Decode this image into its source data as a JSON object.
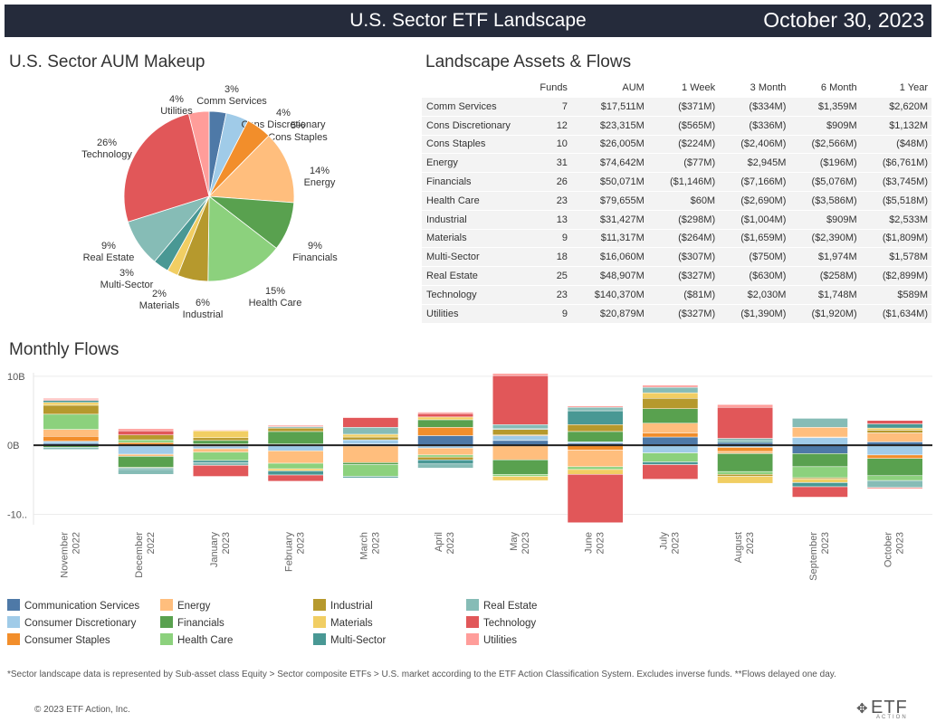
{
  "header": {
    "title": "U.S. Sector ETF Landscape",
    "date": "October 30, 2023"
  },
  "colors": {
    "Communication Services": "#4e79a7",
    "Consumer Discretionary": "#a0cbe8",
    "Consumer Staples": "#f28e2b",
    "Energy": "#ffbe7d",
    "Financials": "#59a14f",
    "Health Care": "#8cd17d",
    "Industrial": "#b6992d",
    "Materials": "#f1ce63",
    "Multi-Sector": "#499894",
    "Real Estate": "#86bcb6",
    "Technology": "#e15759",
    "Utilities": "#ff9d9a"
  },
  "pie": {
    "title": "U.S. Sector AUM Makeup",
    "slices": [
      {
        "name": "Comm Services",
        "pct": "3%",
        "value": 17511,
        "color_key": "Communication Services"
      },
      {
        "name": "Cons Discretionary",
        "pct": "4%",
        "value": 23315,
        "color_key": "Consumer Discretionary"
      },
      {
        "name": "Cons Staples",
        "pct": "5%",
        "value": 26005,
        "color_key": "Consumer Staples"
      },
      {
        "name": "Energy",
        "pct": "14%",
        "value": 74642,
        "color_key": "Energy"
      },
      {
        "name": "Financials",
        "pct": "9%",
        "value": 50071,
        "color_key": "Financials"
      },
      {
        "name": "Health Care",
        "pct": "15%",
        "value": 79655,
        "color_key": "Health Care"
      },
      {
        "name": "Industrial",
        "pct": "6%",
        "value": 31427,
        "color_key": "Industrial"
      },
      {
        "name": "Materials",
        "pct": "2%",
        "value": 11317,
        "color_key": "Materials"
      },
      {
        "name": "Multi-Sector",
        "pct": "3%",
        "value": 16060,
        "color_key": "Multi-Sector"
      },
      {
        "name": "Real Estate",
        "pct": "9%",
        "value": 48907,
        "color_key": "Real Estate"
      },
      {
        "name": "Technology",
        "pct": "26%",
        "value": 140370,
        "color_key": "Technology"
      },
      {
        "name": "Utilities",
        "pct": "4%",
        "value": 20879,
        "color_key": "Utilities"
      }
    ]
  },
  "table": {
    "title": "Landscape Assets & Flows",
    "columns": [
      "Funds",
      "AUM",
      "1 Week",
      "3 Month",
      "6 Month",
      "1 Year"
    ],
    "rows": [
      {
        "sector": "Comm Services",
        "cells": [
          "7",
          "$17,511M",
          "($371M)",
          "($334M)",
          "$1,359M",
          "$2,620M"
        ]
      },
      {
        "sector": "Cons Discretionary",
        "cells": [
          "12",
          "$23,315M",
          "($565M)",
          "($336M)",
          "$909M",
          "$1,132M"
        ]
      },
      {
        "sector": "Cons Staples",
        "cells": [
          "10",
          "$26,005M",
          "($224M)",
          "($2,406M)",
          "($2,566M)",
          "($48M)"
        ]
      },
      {
        "sector": "Energy",
        "cells": [
          "31",
          "$74,642M",
          "($77M)",
          "$2,945M",
          "($196M)",
          "($6,761M)"
        ]
      },
      {
        "sector": "Financials",
        "cells": [
          "26",
          "$50,071M",
          "($1,146M)",
          "($7,166M)",
          "($5,076M)",
          "($3,745M)"
        ]
      },
      {
        "sector": "Health Care",
        "cells": [
          "23",
          "$79,655M",
          "$60M",
          "($2,690M)",
          "($3,586M)",
          "($5,518M)"
        ]
      },
      {
        "sector": "Industrial",
        "cells": [
          "13",
          "$31,427M",
          "($298M)",
          "($1,004M)",
          "$909M",
          "$2,533M"
        ]
      },
      {
        "sector": "Materials",
        "cells": [
          "9",
          "$11,317M",
          "($264M)",
          "($1,659M)",
          "($2,390M)",
          "($1,809M)"
        ]
      },
      {
        "sector": "Multi-Sector",
        "cells": [
          "18",
          "$16,060M",
          "($307M)",
          "($750M)",
          "$1,974M",
          "$1,578M"
        ]
      },
      {
        "sector": "Real Estate",
        "cells": [
          "25",
          "$48,907M",
          "($327M)",
          "($630M)",
          "($258M)",
          "($2,899M)"
        ]
      },
      {
        "sector": "Technology",
        "cells": [
          "23",
          "$140,370M",
          "($81M)",
          "$2,030M",
          "$1,748M",
          "$589M"
        ]
      },
      {
        "sector": "Utilities",
        "cells": [
          "9",
          "$20,879M",
          "($327M)",
          "($1,390M)",
          "($1,920M)",
          "($1,634M)"
        ]
      }
    ]
  },
  "chart_data": {
    "type": "bar",
    "stacked": true,
    "title": "Monthly Flows",
    "y_ticks": [
      "10B",
      "0B",
      "-10.."
    ],
    "ylim": [
      -11.5,
      10.5
    ],
    "grid": true,
    "legend_position": "bottom",
    "categories": [
      "November 2022",
      "December 2022",
      "January 2023",
      "February 2023",
      "March 2023",
      "April 2023",
      "May 2023",
      "June 2023",
      "July 2023",
      "August 2023",
      "September 2023",
      "October 2023"
    ],
    "series": [
      {
        "name": "Communication Services",
        "values": [
          0.3,
          -0.1,
          -0.2,
          0.1,
          0.2,
          1.4,
          0.7,
          0.3,
          1.2,
          0.4,
          -1.2,
          0.5
        ]
      },
      {
        "name": "Consumer Discretionary",
        "values": [
          0.3,
          -1.2,
          -0.3,
          -0.8,
          0.6,
          -0.4,
          0.7,
          0.2,
          -1.1,
          -0.3,
          1.1,
          -1.4
        ]
      },
      {
        "name": "Consumer Staples",
        "values": [
          0.7,
          0.4,
          0.2,
          0.1,
          -0.1,
          1.2,
          0.1,
          -0.7,
          0.6,
          -0.6,
          0.1,
          -0.5
        ]
      },
      {
        "name": "Energy",
        "values": [
          1.0,
          -0.3,
          -0.5,
          -1.8,
          -2.4,
          -1.0,
          -2.1,
          -2.4,
          1.4,
          -0.3,
          1.4,
          1.3
        ]
      },
      {
        "name": "Financials",
        "values": [
          -0.3,
          -1.6,
          0.5,
          1.8,
          -0.3,
          1.1,
          -2.1,
          1.5,
          2.1,
          -2.6,
          -1.9,
          -2.5
        ]
      },
      {
        "name": "Health Care",
        "values": [
          2.2,
          0.4,
          -1.2,
          -0.8,
          -1.7,
          -0.3,
          -0.3,
          -0.4,
          -1.3,
          -0.4,
          -1.6,
          -0.7
        ]
      },
      {
        "name": "Industrial",
        "values": [
          1.3,
          0.7,
          0.4,
          0.5,
          0.4,
          -0.4,
          0.8,
          1.0,
          1.5,
          -0.3,
          -0.2,
          0.4
        ]
      },
      {
        "name": "Materials",
        "values": [
          0.4,
          -0.1,
          1.0,
          -0.3,
          0.4,
          0.4,
          -0.6,
          -0.7,
          0.8,
          -1.0,
          -0.5,
          0.3
        ]
      },
      {
        "name": "Multi-Sector",
        "values": [
          0.3,
          -0.2,
          -0.3,
          -0.6,
          -0.2,
          -0.6,
          0.1,
          2.0,
          -0.4,
          0.2,
          -0.6,
          0.6
        ]
      },
      {
        "name": "Real Estate",
        "values": [
          -0.3,
          -0.7,
          -0.4,
          0.2,
          1.0,
          -0.6,
          0.6,
          0.5,
          0.8,
          0.4,
          1.3,
          -1.0
        ]
      },
      {
        "name": "Technology",
        "values": [
          0.1,
          0.6,
          -1.6,
          -0.9,
          1.4,
          0.5,
          7.1,
          -7.0,
          -2.1,
          4.5,
          -1.5,
          0.5
        ]
      },
      {
        "name": "Utilities",
        "values": [
          0.2,
          0.3,
          0.1,
          0.2,
          0.1,
          0.2,
          0.3,
          0.2,
          0.3,
          0.4,
          -0.1,
          -0.2
        ]
      }
    ]
  },
  "footer": {
    "footnote": "*Sector landscape data is represented by Sub-asset class Equity > Sector composite ETFs > U.S. market according to the ETF Action Classification System. Excludes inverse funds. **Flows delayed one day.",
    "copyright": "© 2023 ETF Action, Inc.",
    "logo_text": "ETF",
    "logo_sub": "ACTION"
  }
}
